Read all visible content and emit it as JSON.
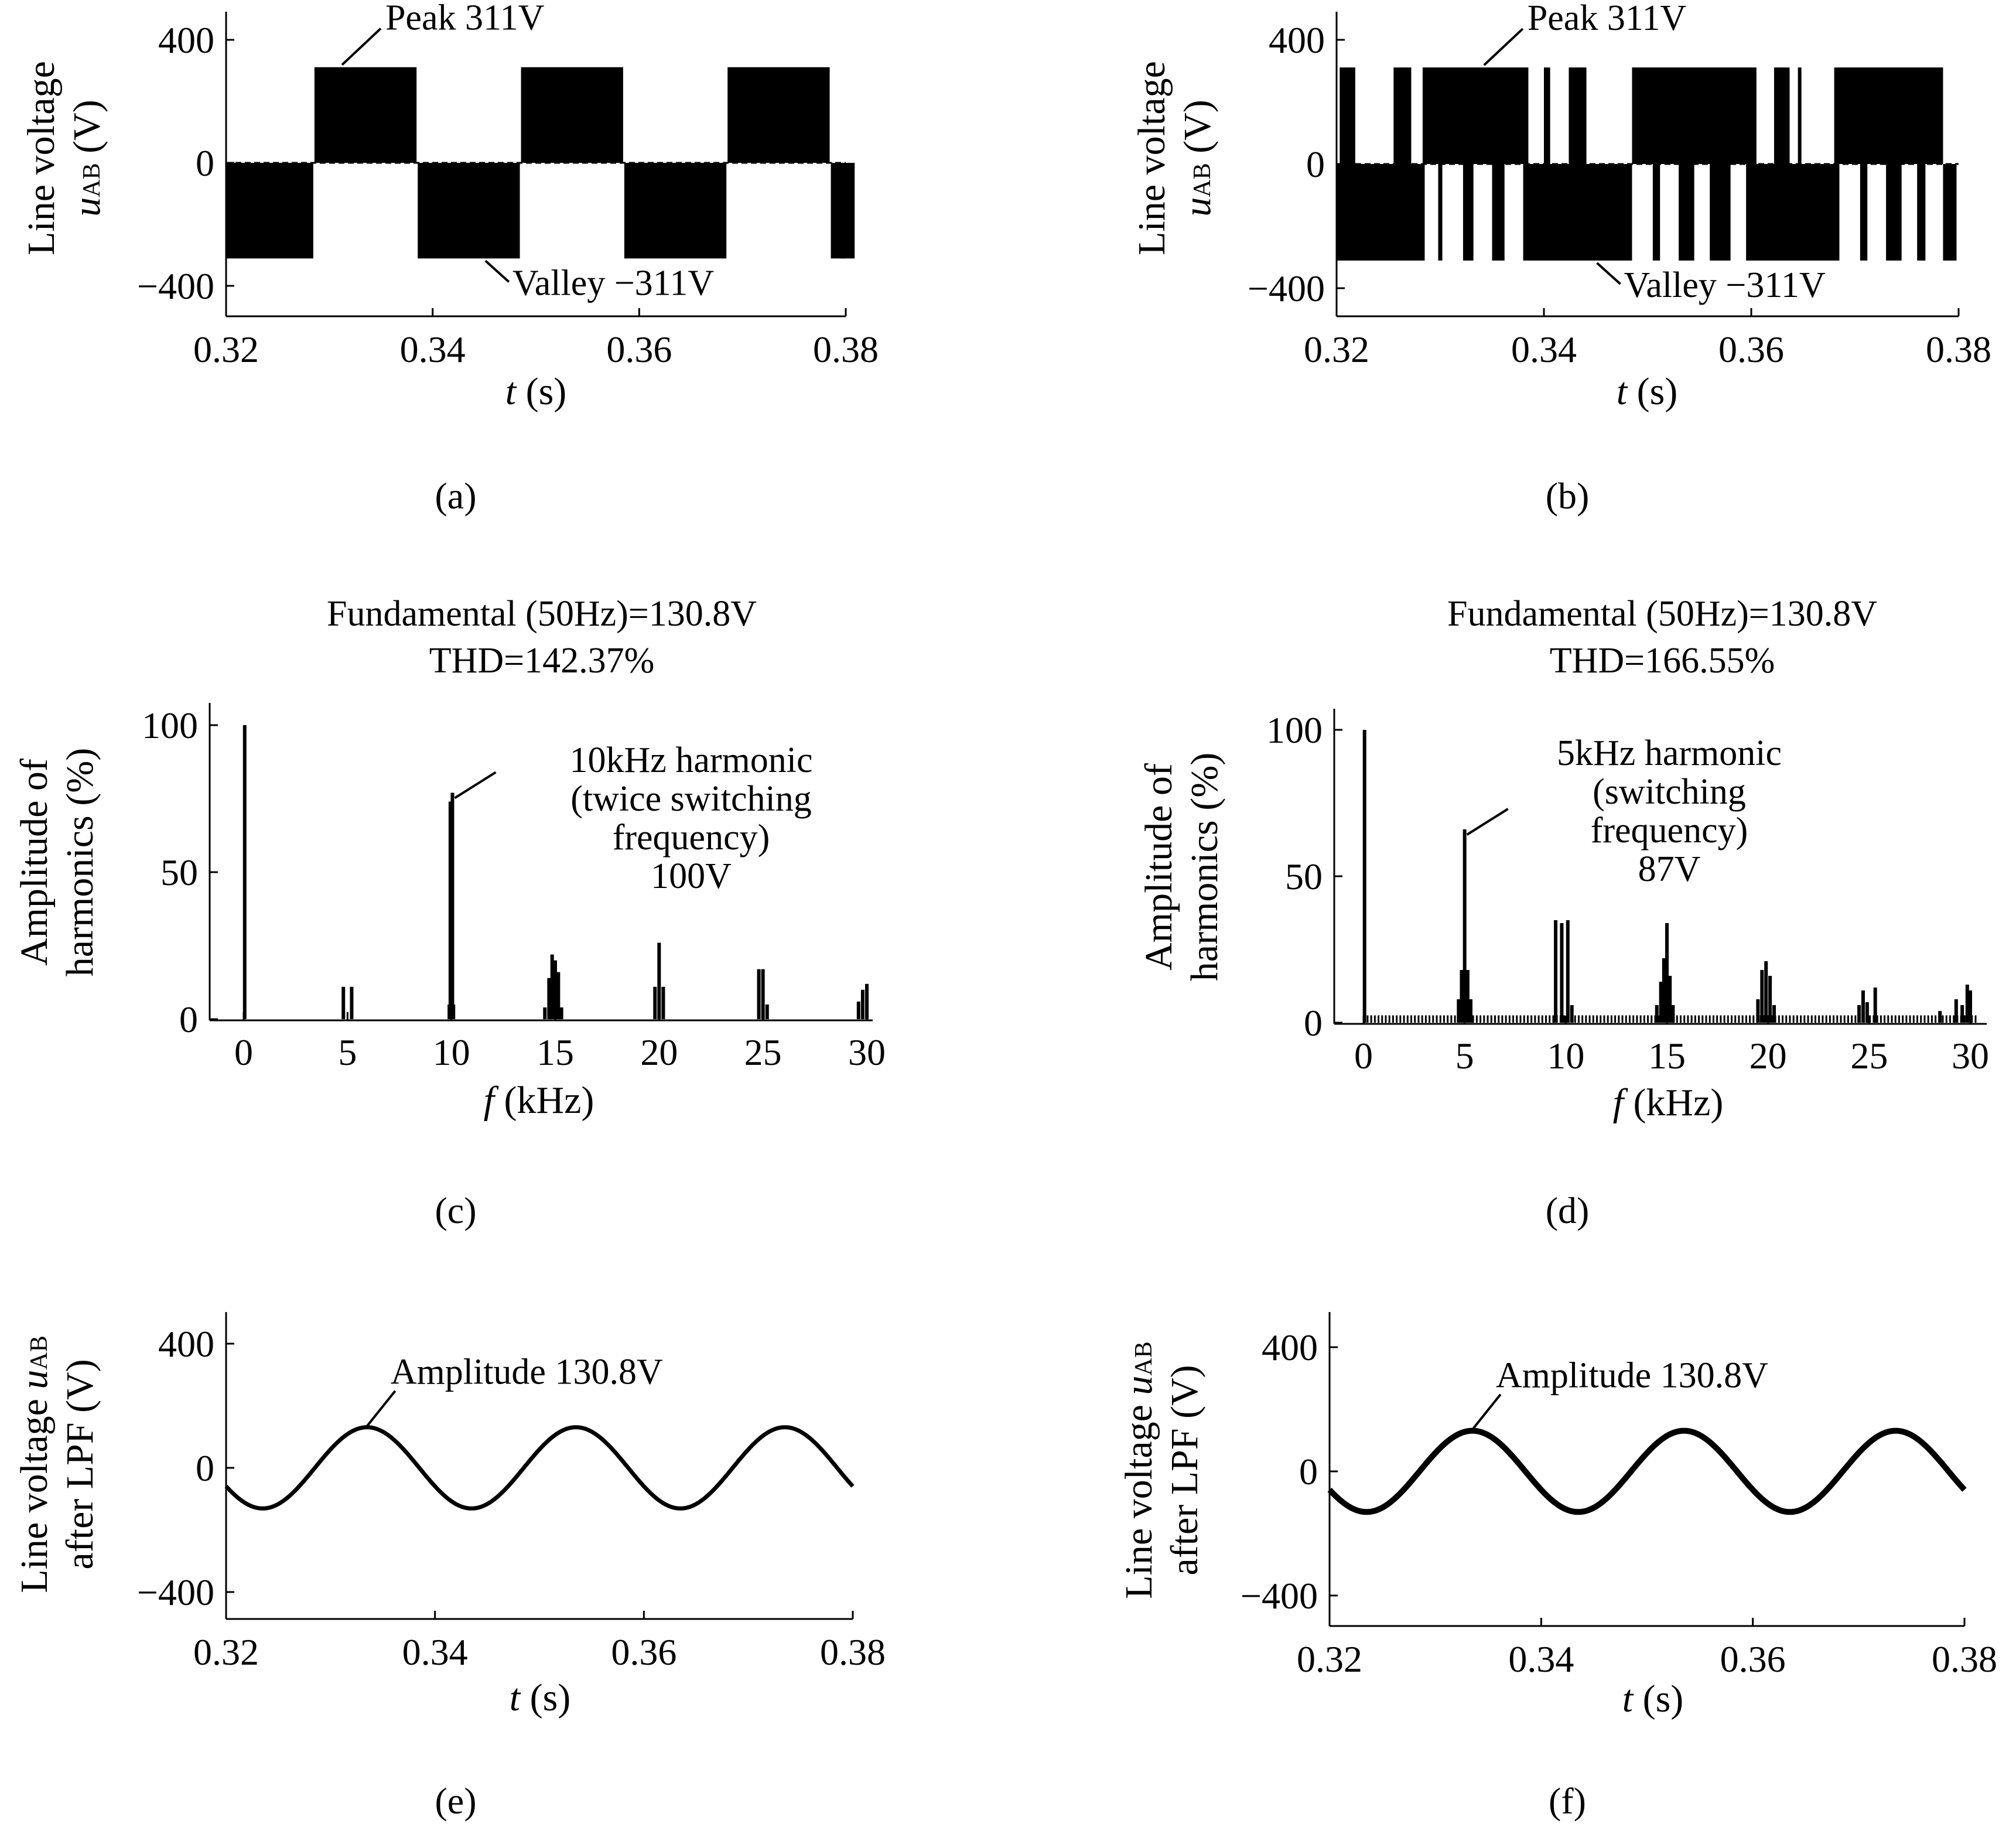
{
  "figure": {
    "captions": [
      "(a)",
      "(b)",
      "(c)",
      "(d)",
      "(e)",
      "(f)"
    ]
  },
  "chart_data": [
    {
      "id": "a",
      "type": "line",
      "caption": "(a)",
      "xlabel_var": "t",
      "xlabel_unit": "(s)",
      "ylabel_line1": "Line voltage",
      "ylabel_var": "u",
      "ylabel_sub": "AB",
      "ylabel_unit": "(V)",
      "xlim": [
        0.32,
        0.38
      ],
      "ylim": [
        -500,
        500
      ],
      "xticks": [
        0.32,
        0.34,
        0.36,
        0.38
      ],
      "xtick_labels": [
        "0.32",
        "0.34",
        "0.36",
        "0.38"
      ],
      "yticks": [
        -400,
        0,
        400
      ],
      "ytick_labels": [
        "−400",
        "0",
        "400"
      ],
      "waveform": "pwm_unipolar",
      "peak_value": 311,
      "valley_value": -311,
      "fundamental_hz": 50,
      "annotations": [
        {
          "text": "Peak 311V",
          "x": 0.331,
          "y": 311
        },
        {
          "text": "Valley −311V",
          "x": 0.345,
          "y": -311
        }
      ]
    },
    {
      "id": "b",
      "type": "line",
      "caption": "(b)",
      "xlabel_var": "t",
      "xlabel_unit": "(s)",
      "ylabel_line1": "Line voltage",
      "ylabel_var": "u",
      "ylabel_sub": "AB",
      "ylabel_unit": "(V)",
      "xlim": [
        0.32,
        0.38
      ],
      "ylim": [
        -500,
        500
      ],
      "xticks": [
        0.32,
        0.34,
        0.36,
        0.38
      ],
      "xtick_labels": [
        "0.32",
        "0.34",
        "0.36",
        "0.38"
      ],
      "yticks": [
        -400,
        0,
        400
      ],
      "ytick_labels": [
        "−400",
        "0",
        "400"
      ],
      "waveform": "pwm_bipolar",
      "peak_value": 311,
      "valley_value": -311,
      "fundamental_hz": 50,
      "annotations": [
        {
          "text": "Peak 311V",
          "x": 0.334,
          "y": 311
        },
        {
          "text": "Valley −311V",
          "x": 0.345,
          "y": -311
        }
      ]
    },
    {
      "id": "c",
      "type": "bar",
      "caption": "(c)",
      "title_line1": "Fundamental (50Hz)=130.8V",
      "title_line2": "THD=142.37%",
      "xlabel_var": "f",
      "xlabel_unit": "(kHz)",
      "ylabel_line1": "Amplitude of",
      "ylabel_line2": "harmonics (%)",
      "xlim": [
        -1.5,
        30.5
      ],
      "ylim": [
        0,
        108
      ],
      "xticks": [
        0,
        5,
        10,
        15,
        20,
        25,
        30
      ],
      "yticks": [
        0,
        50,
        100
      ],
      "bars": [
        {
          "f": 0.05,
          "v": 100
        },
        {
          "f": 4.8,
          "v": 11
        },
        {
          "f": 5.2,
          "v": 11
        },
        {
          "f": 9.9,
          "v": 5
        },
        {
          "f": 9.95,
          "v": 74
        },
        {
          "f": 10.05,
          "v": 77
        },
        {
          "f": 10.1,
          "v": 5
        },
        {
          "f": 14.5,
          "v": 4
        },
        {
          "f": 14.7,
          "v": 14
        },
        {
          "f": 14.85,
          "v": 22
        },
        {
          "f": 15.0,
          "v": 20
        },
        {
          "f": 15.15,
          "v": 16
        },
        {
          "f": 15.3,
          "v": 4
        },
        {
          "f": 19.8,
          "v": 11
        },
        {
          "f": 20.0,
          "v": 26
        },
        {
          "f": 20.2,
          "v": 11
        },
        {
          "f": 24.8,
          "v": 17
        },
        {
          "f": 25.0,
          "v": 17
        },
        {
          "f": 25.2,
          "v": 5
        },
        {
          "f": 29.6,
          "v": 6
        },
        {
          "f": 29.8,
          "v": 10
        },
        {
          "f": 30.0,
          "v": 12
        }
      ],
      "annotation_lines": [
        "10kHz harmonic",
        "(twice switching",
        "frequency)",
        "100V"
      ],
      "annotation_point": {
        "f": 10.05,
        "v": 76
      }
    },
    {
      "id": "d",
      "type": "bar",
      "caption": "(d)",
      "title_line1": "Fundamental (50Hz)=130.8V",
      "title_line2": "THD=166.55%",
      "xlabel_var": "f",
      "xlabel_unit": "(kHz)",
      "ylabel_line1": "Amplitude of",
      "ylabel_line2": "harmonics (%)",
      "xlim": [
        -1.5,
        30.5
      ],
      "ylim": [
        0,
        108
      ],
      "xticks": [
        0,
        5,
        10,
        15,
        20,
        25,
        30
      ],
      "yticks": [
        0,
        50,
        100
      ],
      "bars": [
        {
          "f": 0.05,
          "v": 100
        },
        {
          "f": 4.7,
          "v": 8
        },
        {
          "f": 4.85,
          "v": 18
        },
        {
          "f": 5.0,
          "v": 66
        },
        {
          "f": 5.15,
          "v": 18
        },
        {
          "f": 5.3,
          "v": 8
        },
        {
          "f": 9.5,
          "v": 35
        },
        {
          "f": 9.8,
          "v": 34
        },
        {
          "f": 10.1,
          "v": 35
        },
        {
          "f": 10.3,
          "v": 6
        },
        {
          "f": 14.5,
          "v": 6
        },
        {
          "f": 14.7,
          "v": 14
        },
        {
          "f": 14.85,
          "v": 22
        },
        {
          "f": 15.0,
          "v": 34
        },
        {
          "f": 15.15,
          "v": 16
        },
        {
          "f": 15.3,
          "v": 6
        },
        {
          "f": 19.5,
          "v": 8
        },
        {
          "f": 19.7,
          "v": 18
        },
        {
          "f": 19.9,
          "v": 21
        },
        {
          "f": 20.1,
          "v": 16
        },
        {
          "f": 20.3,
          "v": 6
        },
        {
          "f": 24.5,
          "v": 6
        },
        {
          "f": 24.7,
          "v": 11
        },
        {
          "f": 24.9,
          "v": 7
        },
        {
          "f": 25.3,
          "v": 12
        },
        {
          "f": 28.5,
          "v": 4
        },
        {
          "f": 29.3,
          "v": 8
        },
        {
          "f": 29.6,
          "v": 6
        },
        {
          "f": 29.85,
          "v": 13
        },
        {
          "f": 30.0,
          "v": 11
        }
      ],
      "noise_level": 2.5,
      "annotation_lines": [
        "5kHz harmonic",
        "(switching",
        "frequency)",
        "87V"
      ],
      "annotation_point": {
        "f": 5.0,
        "v": 65
      }
    },
    {
      "id": "e",
      "type": "line",
      "caption": "(e)",
      "xlabel_var": "t",
      "xlabel_unit": "(s)",
      "ylabel_line1_text": "Line voltage",
      "ylabel_var": "u",
      "ylabel_sub": "AB",
      "ylabel_line2": "after LPF (V)",
      "xlim": [
        0.32,
        0.38
      ],
      "ylim": [
        -500,
        500
      ],
      "xticks": [
        0.32,
        0.34,
        0.36,
        0.38
      ],
      "xtick_labels": [
        "0.32",
        "0.34",
        "0.36",
        "0.38"
      ],
      "yticks": [
        -400,
        0,
        400
      ],
      "ytick_labels": [
        "−400",
        "0",
        "400"
      ],
      "amplitude": 130.8,
      "frequency_hz": 50,
      "peak_time": 0.3335,
      "annotation": {
        "text": "Amplitude 130.8V",
        "x": 0.3335,
        "y": 131
      }
    },
    {
      "id": "f",
      "type": "line",
      "caption": "(f)",
      "xlabel_var": "t",
      "xlabel_unit": "(s)",
      "ylabel_line1_text": "Line voltage",
      "ylabel_var": "u",
      "ylabel_sub": "AB",
      "ylabel_line2": "after LPF (V)",
      "xlim": [
        0.32,
        0.38
      ],
      "ylim": [
        -500,
        500
      ],
      "xticks": [
        0.32,
        0.34,
        0.36,
        0.38
      ],
      "xtick_labels": [
        "0.32",
        "0.34",
        "0.36",
        "0.38"
      ],
      "yticks": [
        -400,
        0,
        400
      ],
      "ytick_labels": [
        "−400",
        "0",
        "400"
      ],
      "amplitude": 130.8,
      "frequency_hz": 50,
      "peak_time": 0.3335,
      "annotation": {
        "text": "Amplitude 130.8V",
        "x": 0.3335,
        "y": 131
      }
    }
  ]
}
